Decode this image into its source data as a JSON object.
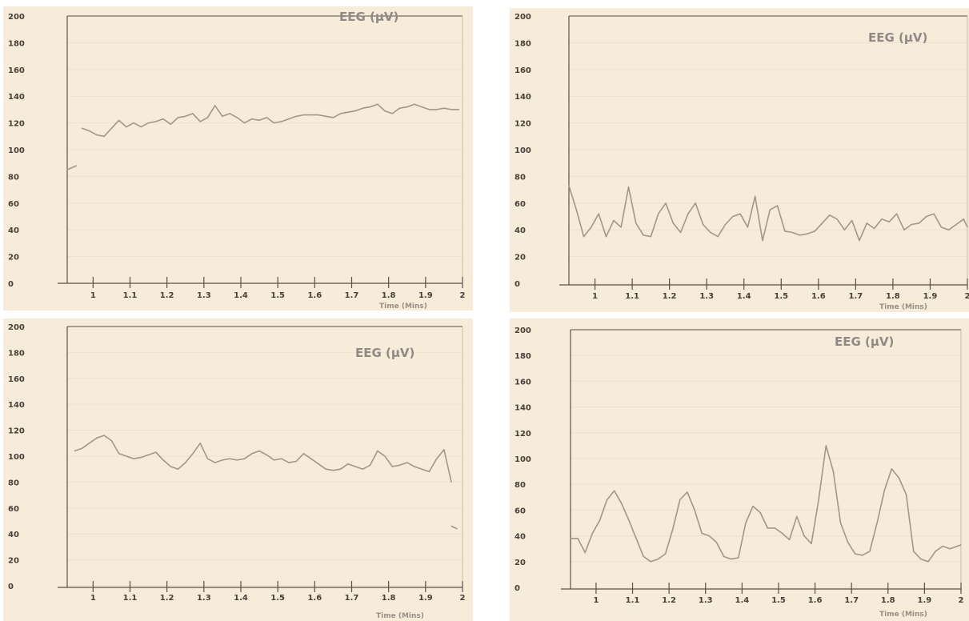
{
  "chart_data": [
    {
      "type": "line",
      "title": "EEG (µV)",
      "xlabel": "Time (Mins)",
      "ylabel": "",
      "xlim": [
        0.93,
        2.0
      ],
      "ylim": [
        0,
        200
      ],
      "yticks": [
        0,
        20,
        40,
        60,
        80,
        100,
        120,
        140,
        160,
        180,
        200
      ],
      "xticks": [
        1,
        1.1,
        1.2,
        1.3,
        1.4,
        1.5,
        1.6,
        1.7,
        1.8,
        1.9,
        2
      ],
      "xtick_labels": [
        "1",
        "1.1",
        "1.2",
        "1.3",
        "1.4",
        "1.5",
        "1.6",
        "1.7",
        "1.8",
        "1.9",
        "2"
      ],
      "grid": true,
      "colors": {
        "background": "#f7ebd9",
        "line": "#a3968a",
        "axis": "#5a5048",
        "text": "#4a4038",
        "title": "#8f8a85"
      },
      "series": [
        {
          "segments": [
            {
              "x": [
                0.93,
                0.955
              ],
              "y": [
                85,
                88
              ]
            },
            {
              "x": [
                0.97,
                0.99,
                1.01,
                1.03,
                1.05,
                1.07,
                1.09,
                1.11,
                1.13,
                1.15,
                1.17,
                1.19,
                1.21,
                1.23,
                1.25,
                1.27,
                1.29,
                1.31,
                1.33,
                1.35,
                1.37,
                1.39,
                1.41,
                1.43,
                1.45,
                1.47,
                1.49,
                1.51,
                1.53,
                1.55,
                1.57,
                1.59,
                1.61,
                1.63,
                1.65,
                1.67,
                1.69,
                1.71,
                1.73,
                1.75,
                1.77,
                1.79,
                1.81,
                1.83,
                1.85,
                1.87,
                1.89,
                1.91,
                1.93,
                1.95,
                1.97,
                1.99
              ],
              "y": [
                116,
                114,
                111,
                110,
                116,
                122,
                117,
                120,
                117,
                120,
                121,
                123,
                119,
                124,
                125,
                127,
                121,
                124,
                133,
                125,
                127,
                124,
                120,
                123,
                122,
                124,
                120,
                121,
                123,
                125,
                126,
                126,
                126,
                125,
                124,
                127,
                128,
                129,
                131,
                132,
                134,
                129,
                127,
                131,
                132,
                134,
                132,
                130,
                130,
                131,
                130,
                130
              ]
            }
          ]
        }
      ]
    },
    {
      "type": "line",
      "title": "EEG (µV)",
      "xlabel": "Time (Mins)",
      "ylabel": "",
      "xlim": [
        0.93,
        2.0
      ],
      "ylim": [
        0,
        200
      ],
      "yticks": [
        0,
        20,
        40,
        60,
        80,
        100,
        120,
        140,
        160,
        180,
        200
      ],
      "xticks": [
        1,
        1.1,
        1.2,
        1.3,
        1.4,
        1.5,
        1.6,
        1.7,
        1.8,
        1.9,
        2
      ],
      "xtick_labels": [
        "1",
        "1.1",
        "1.2",
        "1.3",
        "1.4",
        "1.5",
        "1.6",
        "1.7",
        "1.8",
        "1.9",
        "2"
      ],
      "grid": true,
      "colors": {
        "background": "#f7ebd9",
        "line": "#a3968a",
        "axis": "#5a5048",
        "text": "#4a4038",
        "title": "#8f8a85"
      },
      "series": [
        {
          "segments": [
            {
              "x": [
                0.93,
                0.95,
                0.97,
                0.99,
                1.01,
                1.03,
                1.05,
                1.07,
                1.09,
                1.11,
                1.13,
                1.15,
                1.17,
                1.19,
                1.21,
                1.23,
                1.25,
                1.27,
                1.29,
                1.31,
                1.33,
                1.35,
                1.37,
                1.39,
                1.41,
                1.43,
                1.45,
                1.47,
                1.49,
                1.51,
                1.53,
                1.55,
                1.57,
                1.59,
                1.61,
                1.63,
                1.65,
                1.67,
                1.69,
                1.71,
                1.73,
                1.75,
                1.77,
                1.79,
                1.81,
                1.83,
                1.85,
                1.87,
                1.89,
                1.91,
                1.93,
                1.95,
                1.97,
                1.99,
                2.0
              ],
              "y": [
                73,
                55,
                35,
                42,
                52,
                35,
                47,
                42,
                72,
                45,
                36,
                35,
                52,
                60,
                45,
                38,
                52,
                60,
                44,
                38,
                35,
                44,
                50,
                52,
                42,
                65,
                32,
                55,
                58,
                39,
                38,
                36,
                37,
                39,
                45,
                51,
                48,
                40,
                47,
                32,
                45,
                41,
                48,
                46,
                52,
                40,
                44,
                45,
                50,
                52,
                42,
                40,
                44,
                48,
                42
              ]
            }
          ]
        }
      ]
    },
    {
      "type": "line",
      "title": "EEG (µV)",
      "xlabel": "Time (Mins)",
      "ylabel": "",
      "xlim": [
        0.93,
        2.0
      ],
      "ylim": [
        0,
        200
      ],
      "yticks": [
        0,
        20,
        40,
        60,
        80,
        100,
        120,
        140,
        160,
        180,
        200
      ],
      "xticks": [
        1,
        1.1,
        1.2,
        1.3,
        1.4,
        1.5,
        1.6,
        1.7,
        1.8,
        1.9,
        2
      ],
      "xtick_labels": [
        "1",
        "1.1",
        "1.2",
        "1.3",
        "1.4",
        "1.5",
        "1.6",
        "1.7",
        "1.8",
        "1.9",
        "2"
      ],
      "grid": true,
      "colors": {
        "background": "#f7ebd9",
        "line": "#a3968a",
        "axis": "#5a5048",
        "text": "#4a4038",
        "title": "#8f8a85"
      },
      "series": [
        {
          "segments": [
            {
              "x": [
                0.95,
                0.97,
                0.99,
                1.01,
                1.03,
                1.05,
                1.07,
                1.09,
                1.11,
                1.13,
                1.15,
                1.17,
                1.19,
                1.21,
                1.23,
                1.25,
                1.27,
                1.29,
                1.31,
                1.33,
                1.35,
                1.37,
                1.39,
                1.41,
                1.43,
                1.45,
                1.47,
                1.49,
                1.51,
                1.53,
                1.55,
                1.57,
                1.59,
                1.61,
                1.63,
                1.65,
                1.67,
                1.69,
                1.71,
                1.73,
                1.75,
                1.77,
                1.79,
                1.81,
                1.83,
                1.85,
                1.87,
                1.89,
                1.91,
                1.93,
                1.95,
                1.97
              ],
              "y": [
                104,
                106,
                110,
                114,
                116,
                112,
                102,
                100,
                98,
                99,
                101,
                103,
                97,
                92,
                90,
                95,
                102,
                110,
                98,
                95,
                97,
                98,
                97,
                98,
                102,
                104,
                101,
                97,
                98,
                95,
                96,
                102,
                98,
                94,
                90,
                89,
                90,
                94,
                92,
                90,
                93,
                104,
                100,
                92,
                93,
                95,
                92,
                90,
                88,
                98,
                105,
                80
              ]
            },
            {
              "x": [
                1.97,
                1.985
              ],
              "y": [
                46,
                44
              ]
            }
          ]
        }
      ]
    },
    {
      "type": "line",
      "title": "EEG (µV)",
      "xlabel": "Time (Mins)",
      "ylabel": "",
      "xlim": [
        0.93,
        2.0
      ],
      "ylim": [
        0,
        200
      ],
      "yticks": [
        0,
        20,
        40,
        60,
        80,
        100,
        120,
        140,
        160,
        180,
        200
      ],
      "xticks": [
        1,
        1.1,
        1.2,
        1.3,
        1.4,
        1.5,
        1.6,
        1.7,
        1.8,
        1.9,
        2
      ],
      "xtick_labels": [
        "1",
        "1.1",
        "1.2",
        "1.3",
        "1.4",
        "1.5",
        "1.6",
        "1.7",
        "1.8",
        "1.9",
        "2"
      ],
      "grid": true,
      "colors": {
        "background": "#f7ebd9",
        "line": "#a3968a",
        "axis": "#5a5048",
        "text": "#4a4038",
        "title": "#8f8a85"
      },
      "series": [
        {
          "segments": [
            {
              "x": [
                0.93,
                0.95,
                0.97,
                0.99,
                1.01,
                1.03,
                1.05,
                1.07,
                1.09,
                1.11,
                1.13,
                1.15,
                1.17,
                1.19,
                1.21,
                1.23,
                1.25,
                1.27,
                1.29,
                1.31,
                1.33,
                1.35,
                1.37,
                1.39,
                1.41,
                1.43,
                1.45,
                1.47,
                1.49,
                1.51,
                1.53,
                1.55,
                1.57,
                1.59,
                1.61,
                1.63,
                1.65,
                1.67,
                1.69,
                1.71,
                1.73,
                1.75,
                1.77,
                1.79,
                1.81,
                1.83,
                1.85,
                1.87,
                1.89,
                1.91,
                1.93,
                1.95,
                1.97,
                1.99,
                2.0
              ],
              "y": [
                38,
                38,
                27,
                42,
                52,
                68,
                75,
                65,
                52,
                38,
                24,
                20,
                22,
                26,
                45,
                68,
                74,
                60,
                42,
                40,
                35,
                24,
                22,
                23,
                50,
                63,
                58,
                46,
                46,
                42,
                37,
                55,
                40,
                34,
                68,
                110,
                90,
                50,
                35,
                26,
                25,
                28,
                50,
                75,
                92,
                85,
                72,
                28,
                22,
                20,
                28,
                32,
                30,
                32,
                33
              ]
            }
          ]
        }
      ]
    }
  ]
}
